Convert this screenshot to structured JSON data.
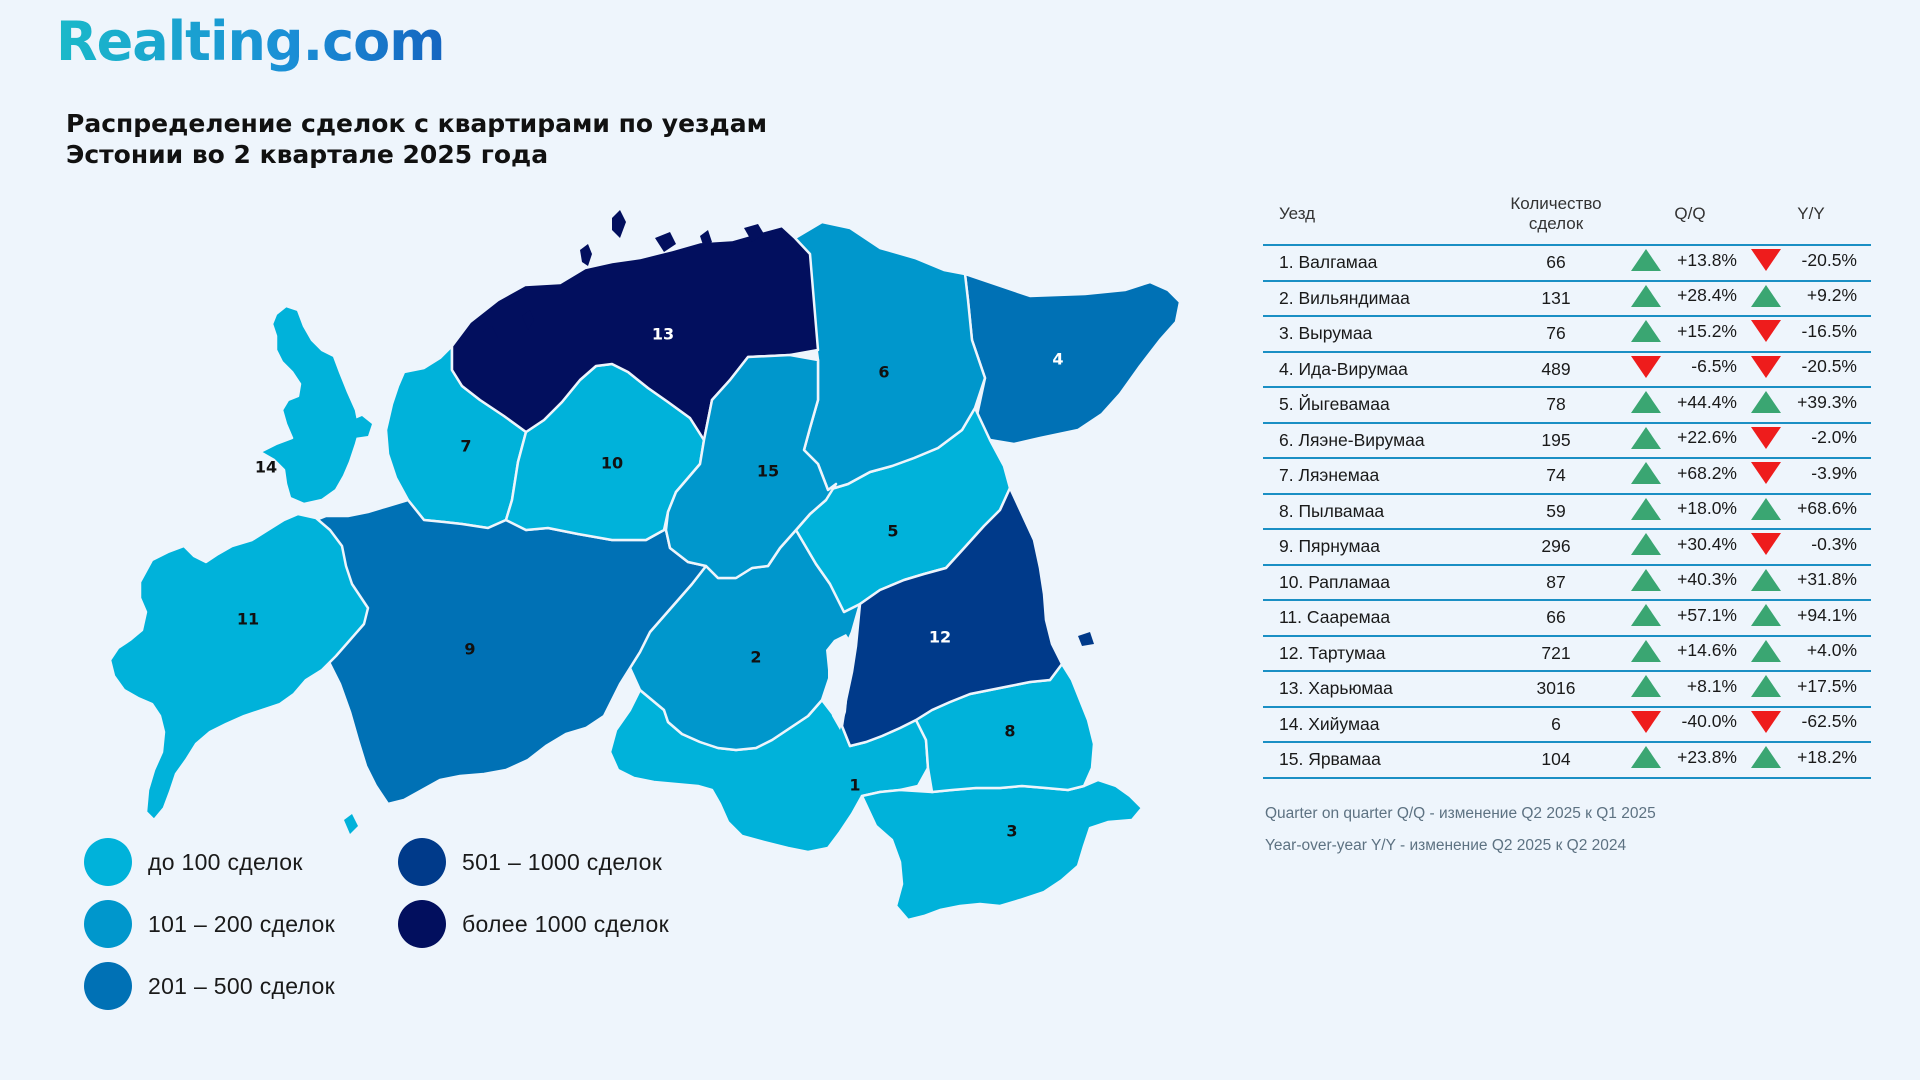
{
  "brand": {
    "logo_text": "Realting.com"
  },
  "title_lines": [
    "Распределение сделок с квартирами по уездам",
    "Эстонии во 2 квартале 2025 года"
  ],
  "colors": {
    "c1": "#00b2da",
    "c2": "#0097cc",
    "c3": "#0071b5",
    "c4": "#003a8a",
    "c5": "#020f5e",
    "up": "#3aa672",
    "down": "#ee1c1c",
    "rule": "#1a8fc4"
  },
  "legend": [
    {
      "label": "до 100 сделок",
      "color": "#00b2da"
    },
    {
      "label": "101 – 200 сделок",
      "color": "#0097cc"
    },
    {
      "label": "201 – 500 сделок",
      "color": "#0071b5"
    },
    {
      "label": "501 – 1000 сделок",
      "color": "#003a8a"
    },
    {
      "label": "более 1000 сделок",
      "color": "#020f5e"
    }
  ],
  "map_regions": [
    {
      "num": "1",
      "color": "#00b2da",
      "label_color": "#111111"
    },
    {
      "num": "2",
      "color": "#0097cc",
      "label_color": "#111111"
    },
    {
      "num": "3",
      "color": "#00b2da",
      "label_color": "#111111"
    },
    {
      "num": "4",
      "color": "#0071b5",
      "label_color": "#ffffff"
    },
    {
      "num": "5",
      "color": "#00b2da",
      "label_color": "#111111"
    },
    {
      "num": "6",
      "color": "#0097cc",
      "label_color": "#111111"
    },
    {
      "num": "7",
      "color": "#00b2da",
      "label_color": "#111111"
    },
    {
      "num": "8",
      "color": "#00b2da",
      "label_color": "#111111"
    },
    {
      "num": "9",
      "color": "#0071b5",
      "label_color": "#111111"
    },
    {
      "num": "10",
      "color": "#00b2da",
      "label_color": "#111111"
    },
    {
      "num": "11",
      "color": "#00b2da",
      "label_color": "#111111"
    },
    {
      "num": "12",
      "color": "#003a8a",
      "label_color": "#ffffff"
    },
    {
      "num": "13",
      "color": "#020f5e",
      "label_color": "#ffffff"
    },
    {
      "num": "14",
      "color": "#00b2da",
      "label_color": "#111111"
    },
    {
      "num": "15",
      "color": "#0097cc",
      "label_color": "#111111"
    }
  ],
  "table": {
    "headers": {
      "county": "Уезд",
      "count_line1": "Количество",
      "count_line2": "сделок",
      "qq": "Q/Q",
      "yy": "Y/Y"
    },
    "rows": [
      {
        "name": "1. Валгамаа",
        "count": "66",
        "qq": "+13.8%",
        "qq_dir": "up",
        "yy": "-20.5%",
        "yy_dir": "down"
      },
      {
        "name": "2. Вильяндимаа",
        "count": "131",
        "qq": "+28.4%",
        "qq_dir": "up",
        "yy": "+9.2%",
        "yy_dir": "up"
      },
      {
        "name": "3. Вырумаа",
        "count": "76",
        "qq": "+15.2%",
        "qq_dir": "up",
        "yy": "-16.5%",
        "yy_dir": "down"
      },
      {
        "name": "4. Ида-Вирумаа",
        "count": "489",
        "qq": "-6.5%",
        "qq_dir": "down",
        "yy": "-20.5%",
        "yy_dir": "down"
      },
      {
        "name": "5. Йыгевамаа",
        "count": "78",
        "qq": "+44.4%",
        "qq_dir": "up",
        "yy": "+39.3%",
        "yy_dir": "up"
      },
      {
        "name": "6. Ляэне-Вирумаа",
        "count": "195",
        "qq": "+22.6%",
        "qq_dir": "up",
        "yy": "-2.0%",
        "yy_dir": "down"
      },
      {
        "name": "7. Ляэнемаа",
        "count": "74",
        "qq": "+68.2%",
        "qq_dir": "up",
        "yy": "-3.9%",
        "yy_dir": "down"
      },
      {
        "name": "8. Пылвамаа",
        "count": "59",
        "qq": "+18.0%",
        "qq_dir": "up",
        "yy": "+68.6%",
        "yy_dir": "up"
      },
      {
        "name": "9. Пярнумаа",
        "count": "296",
        "qq": "+30.4%",
        "qq_dir": "up",
        "yy": "-0.3%",
        "yy_dir": "down"
      },
      {
        "name": "10. Рапламаа",
        "count": "87",
        "qq": "+40.3%",
        "qq_dir": "up",
        "yy": "+31.8%",
        "yy_dir": "up"
      },
      {
        "name": "11. Сааремаа",
        "count": "66",
        "qq": "+57.1%",
        "qq_dir": "up",
        "yy": "+94.1%",
        "yy_dir": "up"
      },
      {
        "name": "12. Тартумаа",
        "count": "721",
        "qq": "+14.6%",
        "qq_dir": "up",
        "yy": "+4.0%",
        "yy_dir": "up"
      },
      {
        "name": "13. Харьюмаа",
        "count": "3016",
        "qq": "+8.1%",
        "qq_dir": "up",
        "yy": "+17.5%",
        "yy_dir": "up"
      },
      {
        "name": "14. Хийумаа",
        "count": "6",
        "qq": "-40.0%",
        "qq_dir": "down",
        "yy": "-62.5%",
        "yy_dir": "down"
      },
      {
        "name": "15. Ярвамаа",
        "count": "104",
        "qq": "+23.8%",
        "qq_dir": "up",
        "yy": "+18.2%",
        "yy_dir": "up"
      }
    ]
  },
  "notes": [
    "Quarter on quarter Q/Q  - изменение Q2 2025 к Q1 2025",
    "Year-over-year Y/Y - изменение Q2 2025 к Q2 2024"
  ]
}
